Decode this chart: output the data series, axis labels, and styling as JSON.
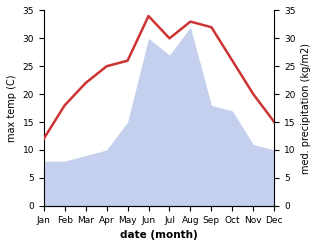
{
  "months": [
    "Jan",
    "Feb",
    "Mar",
    "Apr",
    "May",
    "Jun",
    "Jul",
    "Aug",
    "Sep",
    "Oct",
    "Nov",
    "Dec"
  ],
  "temperature": [
    12,
    18,
    22,
    25,
    26,
    34,
    30,
    33,
    32,
    26,
    20,
    15
  ],
  "precipitation": [
    8,
    8,
    9,
    10,
    15,
    30,
    27,
    32,
    18,
    17,
    11,
    10
  ],
  "temp_color": "#cc3333",
  "precip_color": "#c5d0ee",
  "ylim_left": [
    0,
    35
  ],
  "ylim_right": [
    0,
    35
  ],
  "yticks": [
    0,
    5,
    10,
    15,
    20,
    25,
    30,
    35
  ],
  "ylabel_left": "max temp (C)",
  "ylabel_right": "med. precipitation (kg/m2)",
  "xlabel": "date (month)",
  "background_color": "#ffffff",
  "plot_bg_color": "#ffffff",
  "temp_linewidth": 1.8,
  "label_fontsize": 7,
  "tick_fontsize": 6.5,
  "xlabel_fontsize": 7.5
}
